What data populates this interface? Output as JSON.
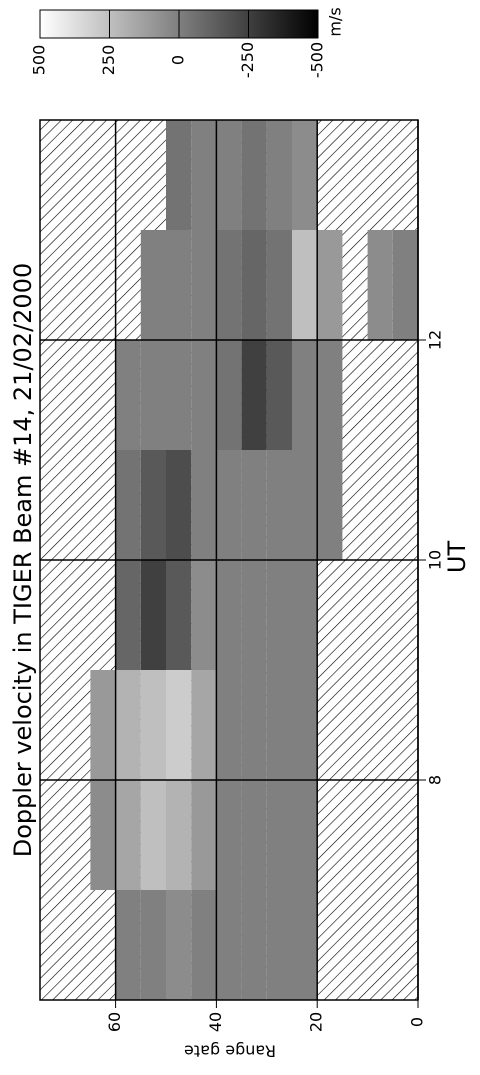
{
  "chart_data": {
    "type": "heatmap",
    "title": "Doppler velocity in TIGER Beam #14, 21/02/2000",
    "xlabel": "UT",
    "ylabel": "Range gate",
    "xlim": [
      6,
      14
    ],
    "xticks": [
      8,
      10,
      12
    ],
    "ylim": [
      0,
      75
    ],
    "yticks": [
      0,
      20,
      40,
      60
    ],
    "grid": true,
    "xbins": [
      6,
      7,
      8,
      9,
      10,
      11,
      12,
      13,
      14
    ],
    "ybins": [
      0,
      5,
      10,
      15,
      20,
      25,
      30,
      35,
      40,
      45,
      50,
      55,
      60,
      65,
      70,
      75
    ],
    "values": [
      [
        null,
        null,
        null,
        null,
        null,
        null,
        0,
        null
      ],
      [
        null,
        null,
        null,
        null,
        null,
        null,
        50,
        null
      ],
      [
        null,
        null,
        null,
        null,
        null,
        null,
        null,
        null
      ],
      [
        null,
        null,
        null,
        null,
        0,
        0,
        100,
        null
      ],
      [
        0,
        0,
        0,
        0,
        0,
        0,
        250,
        50
      ],
      [
        0,
        0,
        0,
        0,
        0,
        -150,
        -50,
        0
      ],
      [
        0,
        0,
        0,
        0,
        0,
        -250,
        -100,
        -50
      ],
      [
        0,
        0,
        0,
        0,
        0,
        -50,
        -50,
        0
      ],
      [
        0,
        100,
        150,
        50,
        0,
        0,
        0,
        0
      ],
      [
        50,
        200,
        300,
        -150,
        -200,
        0,
        0,
        -50
      ],
      [
        0,
        250,
        250,
        -250,
        -150,
        0,
        0,
        null
      ],
      [
        0,
        150,
        200,
        -100,
        -50,
        0,
        null,
        null
      ],
      [
        null,
        50,
        100,
        null,
        null,
        null,
        null,
        null
      ],
      [
        null,
        null,
        null,
        null,
        null,
        null,
        null,
        null
      ],
      [
        null,
        null,
        null,
        null,
        null,
        null,
        null,
        null
      ]
    ],
    "colorbar": {
      "label": "m/s",
      "clim": [
        500,
        -500
      ],
      "ticks": [
        500,
        250,
        0,
        -250,
        -500
      ],
      "colors": [
        "#ffffff",
        "#000000"
      ]
    }
  }
}
